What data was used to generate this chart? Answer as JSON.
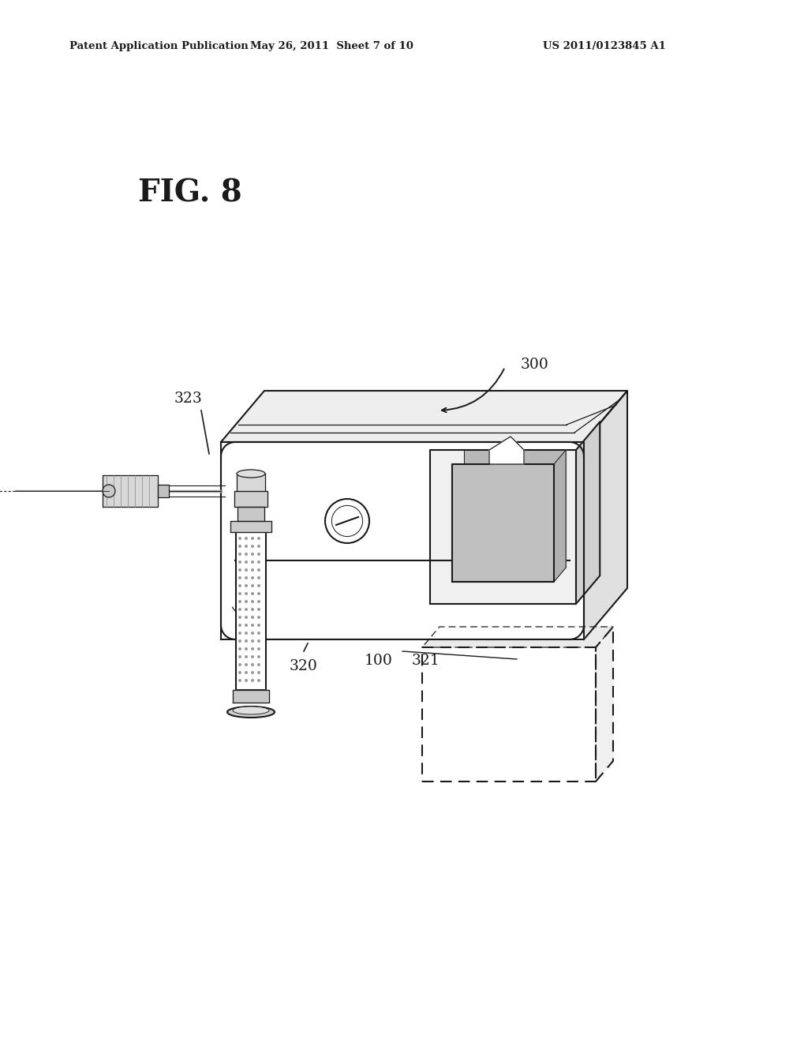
{
  "background_color": "#ffffff",
  "header_left": "Patent Application Publication",
  "header_center": "May 26, 2011  Sheet 7 of 10",
  "header_right": "US 2011/0123845 A1",
  "fig_label": "FIG. 8",
  "ref_300": "300",
  "ref_320": "320",
  "ref_321": "321",
  "ref_100": "100",
  "ref_323": "323",
  "line_color": "#1a1a1a",
  "text_color": "#1a1a1a"
}
